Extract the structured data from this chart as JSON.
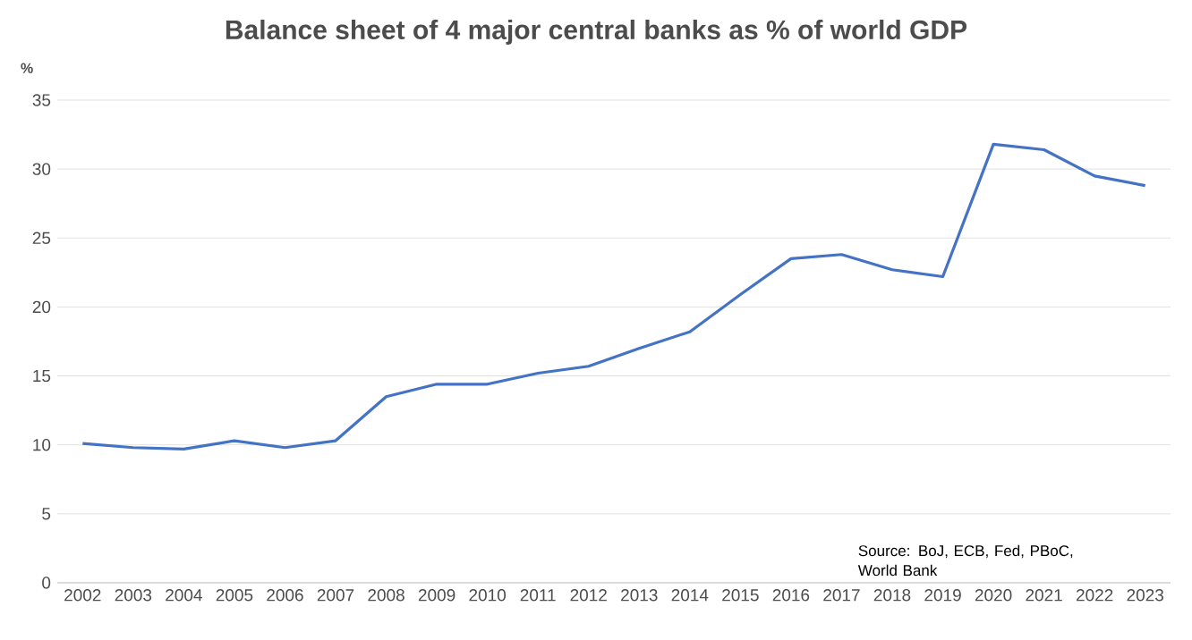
{
  "chart_data": {
    "type": "line",
    "title": "Balance sheet of 4 major central banks as % of world GDP",
    "ylabel": "%",
    "categories": [
      "2002",
      "2003",
      "2004",
      "2005",
      "2006",
      "2007",
      "2008",
      "2009",
      "2010",
      "2011",
      "2012",
      "2013",
      "2014",
      "2015",
      "2016",
      "2017",
      "2018",
      "2019",
      "2020",
      "2021",
      "2022",
      "2023"
    ],
    "series": [
      {
        "color": "#4472c4",
        "values": [
          10.1,
          9.8,
          9.7,
          10.3,
          9.8,
          10.3,
          13.5,
          14.4,
          14.4,
          15.2,
          15.7,
          17.0,
          18.2,
          20.9,
          23.5,
          23.8,
          22.7,
          22.2,
          31.8,
          31.4,
          29.5,
          28.8
        ]
      }
    ],
    "ylim": [
      0,
      35
    ],
    "yticks": [
      0,
      5,
      10,
      15,
      20,
      25,
      30,
      35
    ],
    "grid": "y",
    "annotations": [
      "Source: BoJ, ECB, Fed, PBoC, World Bank"
    ]
  }
}
